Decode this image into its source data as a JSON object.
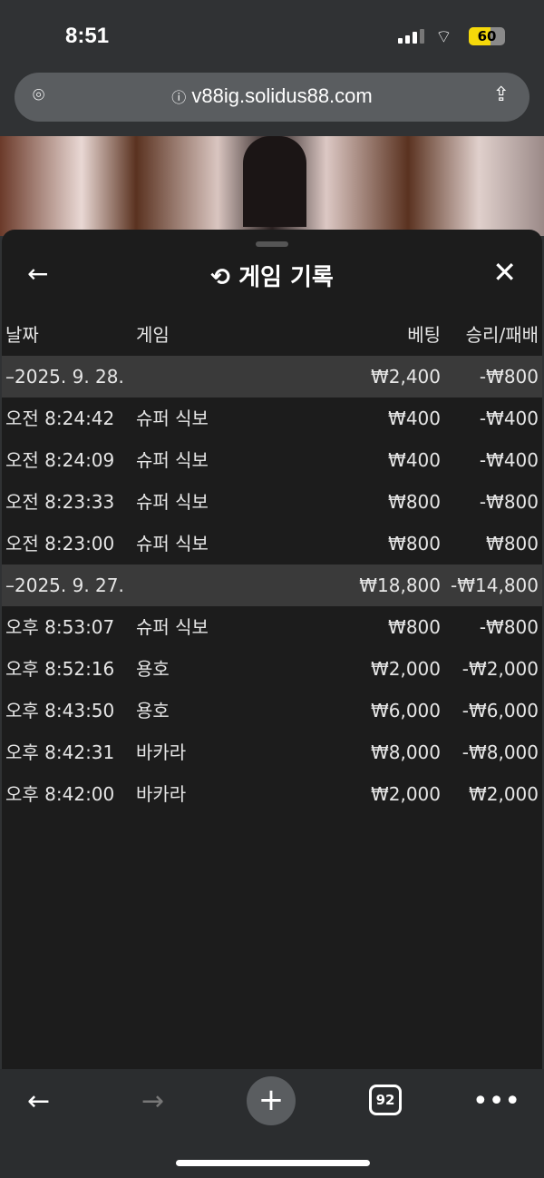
{
  "status": {
    "time": "8:51",
    "battery": "60",
    "battery_level": 60
  },
  "browser": {
    "url": "v88ig.solidus88.com",
    "tab_count": "92"
  },
  "sheet": {
    "title": "게임 기록",
    "columns": [
      "날짜",
      "게임",
      "베팅",
      "승리/패배"
    ],
    "rows": [
      {
        "type": "group",
        "date": "–2025. 9. 28.",
        "bet": "₩2,400",
        "result": "-₩800"
      },
      {
        "type": "item",
        "time": "오전 8:24:42",
        "game": "슈퍼 식보",
        "bet": "₩400",
        "result": "-₩400"
      },
      {
        "type": "item",
        "time": "오전 8:24:09",
        "game": "슈퍼 식보",
        "bet": "₩400",
        "result": "-₩400"
      },
      {
        "type": "item",
        "time": "오전 8:23:33",
        "game": "슈퍼 식보",
        "bet": "₩800",
        "result": "-₩800"
      },
      {
        "type": "item",
        "time": "오전 8:23:00",
        "game": "슈퍼 식보",
        "bet": "₩800",
        "result": "₩800"
      },
      {
        "type": "group",
        "date": "–2025. 9. 27.",
        "bet": "₩18,800",
        "result": "-₩14,800"
      },
      {
        "type": "item",
        "time": "오후 8:53:07",
        "game": "슈퍼 식보",
        "bet": "₩800",
        "result": "-₩800"
      },
      {
        "type": "item",
        "time": "오후 8:52:16",
        "game": "용호",
        "bet": "₩2,000",
        "result": "-₩2,000"
      },
      {
        "type": "item",
        "time": "오후 8:43:50",
        "game": "용호",
        "bet": "₩6,000",
        "result": "-₩6,000"
      },
      {
        "type": "item",
        "time": "오후 8:42:31",
        "game": "바카라",
        "bet": "₩8,000",
        "result": "-₩8,000"
      },
      {
        "type": "item",
        "time": "오후 8:42:00",
        "game": "바카라",
        "bet": "₩2,000",
        "result": "₩2,000"
      }
    ]
  }
}
